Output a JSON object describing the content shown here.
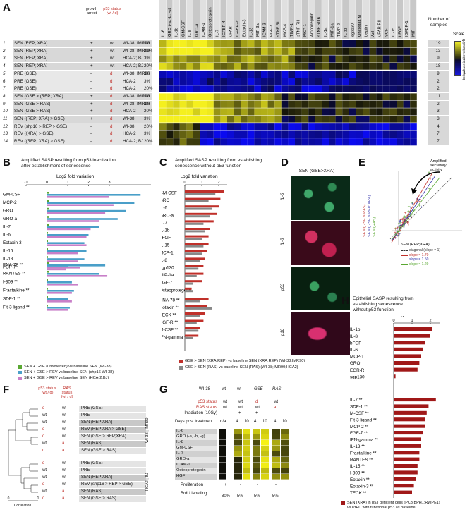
{
  "panelA": {
    "letter": "A",
    "col_headers": {
      "growth": "growth arrest",
      "p53": "p53 status",
      "p53_sub": "(wt / d)"
    },
    "rows": [
      {
        "n": "1",
        "label": "SEN  (REP; XRA)",
        "arrest": "+",
        "p53": "wt",
        "cells": "WI-38; IMR90",
        "o2": "3%",
        "count": "19"
      },
      {
        "n": "2",
        "label": "SEN  (REP; XRA)",
        "arrest": "+",
        "p53": "wt",
        "cells": "WI-38; IMR90",
        "o2": "20%",
        "count": "13"
      },
      {
        "n": "3",
        "label": "SEN  (REP; XRA)",
        "arrest": "+",
        "p53": "wt",
        "cells": "HCA-2; BJ",
        "o2": "3%",
        "count": "9"
      },
      {
        "n": "4",
        "label": "SEN  (REP; XRA)",
        "arrest": "+",
        "p53": "wt",
        "cells": "HCA-2; BJ",
        "o2": "20%",
        "count": "18"
      },
      {
        "n": "5",
        "label": "PRE  (GSE)",
        "arrest": "-",
        "p53": "d",
        "cells": "WI-38; IMR90",
        "o2": "3%",
        "count": "9"
      },
      {
        "n": "6",
        "label": "PRE  (GSE)",
        "arrest": "-",
        "p53": "d",
        "cells": "HCA-2",
        "o2": "3%",
        "count": "2"
      },
      {
        "n": "7",
        "label": "PRE  (GSE)",
        "arrest": "-",
        "p53": "d",
        "cells": "HCA-2",
        "o2": "20%",
        "count": "2"
      },
      {
        "n": "8",
        "label": "SEN  (GSE > (REP; XRA)",
        "arrest": "+",
        "p53": "d",
        "cells": "WI-38; IMR90",
        "o2": "3%",
        "count": "11"
      },
      {
        "n": "9",
        "label": "SEN  (GSE > RAS)",
        "arrest": "+",
        "p53": "d",
        "cells": "WI-38; IMR90",
        "o2": "3%",
        "count": "2"
      },
      {
        "n": "10",
        "label": "SEN  (GSE > RAS)",
        "arrest": "+",
        "p53": "d",
        "cells": "HCA-2",
        "o2": "20%",
        "count": "3"
      },
      {
        "n": "11",
        "label": "SEN  ((REP; XRA) > GSE)",
        "arrest": "+",
        "p53": "d",
        "cells": "WI-38",
        "o2": "3%",
        "count": "3"
      },
      {
        "n": "12",
        "label": "REV  (shp16 > REP > GSE)",
        "arrest": "-",
        "p53": "d",
        "cells": "WI-38",
        "o2": "20%",
        "count": "4"
      },
      {
        "n": "13",
        "label": "REV  ((XRA) > GSE)",
        "arrest": "-",
        "p53": "d",
        "cells": "HCA-2",
        "o2": "3%",
        "count": "7"
      },
      {
        "n": "14",
        "label": "REV  ((REP; XRA) > GSE)",
        "arrest": "-",
        "p53": "d",
        "cells": "HCA-2; BJ",
        "o2": "20%",
        "count": "7"
      }
    ],
    "genes": [
      "IL-6",
      "GRO (-a, -b, -g)",
      "IL-1b",
      "GM-CSF",
      "IL-8",
      "GRO-a",
      "ICAM-1",
      "Osteoprotegerin",
      "IL-7",
      "IGFBP-4",
      "uPAR",
      "IGFBP-2",
      "Eotaxin-3",
      "IL-13",
      "MIP-3a",
      "ICAM-3",
      "FGF-7",
      "sTNF RI",
      "MCP-4",
      "TIMP-1",
      "sTNF RII",
      "MCP-1",
      "Amphiregulin",
      "sTNF RII 6",
      "IL-1a",
      "MIP-1a",
      "TIMP-2",
      "IL-11",
      "sgp130",
      "Oncostat. M",
      "Leptin",
      "Axl",
      "uPAR RII",
      "SCF",
      "IL-15",
      "bFGF",
      "IGFBP-1",
      "MIF"
    ],
    "count_header": "Number of samples",
    "scale": {
      "title": "Scale",
      "top": "above baseline",
      "bottom": "below baseline",
      "max": "4",
      "min": "-1"
    }
  },
  "panelB": {
    "letter": "B",
    "title_l1": "Amplified SASP resulting from p53 inactivation",
    "title_l2a": "after",
    "title_l2b": " establishment of senescence",
    "axis_title": "Log2 fold variation",
    "ticks": [
      "-1",
      "0",
      "1",
      "2",
      "3"
    ],
    "legend": [
      {
        "label": "SEN + GSE (unreverted)  vs  baseline SEN  (WI-38)",
        "color": "#5aa832"
      },
      {
        "label": "SEN + GSE > REV  vs  baseline SEN  (shp16 WI-38)",
        "color": "#4a9fc9"
      },
      {
        "label": "SEN + GSE > REV  vs  baseline SEN  (HCA-2;BJ)",
        "color": "#c87fc8"
      }
    ]
  },
  "panelC": {
    "letter": "C",
    "title_l1": "Amplified SASP resulting from establishing",
    "title_l2": "senescence without p53 function",
    "axis_title": "Log2 fold variation",
    "ticks": [
      "0",
      "1",
      "2"
    ],
    "legend": [
      {
        "label": "GSE > SEN (XRA;REP)  vs  baseline SEN (XRA;REP) (WI-38;IMR90)",
        "color": "#c0302a"
      },
      {
        "label": "GSE > SEN (RAS)  vs  baseline SEN (RAS)  (WI-38;IMR90;HCA2)",
        "color": "#888888"
      }
    ]
  },
  "panelD": {
    "letter": "D",
    "title": "SEN (GSE>XRA)",
    "labels": [
      "IL-6",
      "IL-8",
      "p53",
      "p16"
    ]
  },
  "panelE": {
    "letter": "E",
    "arrow_label_1": "Amplified",
    "arrow_label_2": "secretory",
    "arrow_label_3": "activity",
    "y_labels": [
      "SEN (GSE > RAS)",
      "SEN (GSE > REP;XRA)",
      "SEN (RAS)"
    ],
    "x_label": "SEN (REP;XRA)",
    "legend": [
      {
        "label": "diagonal (slope = 1)",
        "color": "#333333"
      },
      {
        "label": "slope = 1.70",
        "color": "#c0302a"
      },
      {
        "label": "slope = 1.50",
        "color": "#3333aa"
      },
      {
        "label": "slope = 1.29",
        "color": "#5aa832"
      }
    ]
  },
  "panelF": {
    "letter": "F",
    "p53_header": "p53 status",
    "ras_header": "RAS status",
    "sub": "(wt / d)",
    "rows": [
      {
        "p53": "d",
        "ras": "wt",
        "label": "PRE  (GSE)"
      },
      {
        "p53": "wt",
        "ras": "wt",
        "label": "PRE"
      },
      {
        "p53": "wt",
        "ras": "wt",
        "label": "SEN  (REP;XRA)"
      },
      {
        "p53": "d",
        "ras": "wt",
        "label": "REV  (REP;XRA > GSE)"
      },
      {
        "p53": "d",
        "ras": "wt",
        "label": "SEN  (GSE > REP;XRA)"
      },
      {
        "p53": "wt",
        "ras": "a",
        "label": "SEN  (RAS)"
      },
      {
        "p53": "d",
        "ras": "a",
        "label": "SEN  (GSE > RAS)"
      },
      {
        "p53": "d",
        "ras": "wt",
        "label": "PRE  (GSE)"
      },
      {
        "p53": "wt",
        "ras": "wt",
        "label": "PRE"
      },
      {
        "p53": "wt",
        "ras": "wt",
        "label": "SEN  (REP;XRA)"
      },
      {
        "p53": "d",
        "ras": "wt",
        "label": "REV  (shp16 > REP > GSE)"
      },
      {
        "p53": "wt",
        "ras": "a",
        "label": "SEN  (RAS)"
      },
      {
        "p53": "d",
        "ras": "a",
        "label": "SEN  (GSE > RAS)"
      }
    ],
    "group1": "WI-38 ; IMR90",
    "group2": "HCA2 ; BJ",
    "axis": "Correlation",
    "ticks": [
      "0",
      "1"
    ]
  },
  "panelG": {
    "letter": "G",
    "cell": "WI-38",
    "cols": [
      "wt",
      "wt",
      "GSE",
      "RAS"
    ],
    "p53_label": "p53 status",
    "p53": [
      "wt",
      "wt",
      "d",
      "wt"
    ],
    "ras_label": "RAS status",
    "ras": [
      "wt",
      "wt",
      "wt",
      "a"
    ],
    "irr_label": "Irradiation (10Gy)",
    "irr": [
      "-",
      "+",
      "+",
      "-"
    ],
    "days_label": "Days post treatment",
    "days": [
      "n/a",
      "4",
      "10",
      "4",
      "10",
      "4",
      "10"
    ],
    "genes": [
      "IL-6",
      "GRO (-a, -b, -g)",
      "IL-8",
      "GM-CSF",
      "IL-7",
      "GRO-a",
      "ICAM-1",
      "Osteoprotegerin",
      "HGF"
    ],
    "prolif_label": "Proliferation",
    "prolif": [
      "+",
      "-",
      "-",
      "-"
    ],
    "brdu_label": "BrdU labelling",
    "brdu": [
      "80%",
      "5%",
      "5%",
      "5%"
    ]
  },
  "panelH": {
    "letter": "H",
    "title_l1": "Epithelial SASP resulting from",
    "title_l2": "establishing senescence",
    "title_l3": "without p53 function",
    "axis_title": "Log2 fold variation",
    "ticks": [
      "0",
      "1",
      "2"
    ],
    "legend_l1": "SEN (XRA) in p53 deficient cells (PC3;BPH1;RWPE1)",
    "legend_l2": "vs  PrEC with functional p53 as baseline",
    "color": "#a01818"
  },
  "chart_data": [
    {
      "type": "bar",
      "id": "panelB",
      "categories": [
        "GM-CSF",
        "MCP-2",
        "GRO",
        "GRO-a",
        "IL-7",
        "IL-6",
        "Eotaxin-3",
        "IL-15",
        "IL-13",
        "FGF-7",
        "ENA-78 **",
        "RANTES **",
        "I-309 **",
        "Fractalkine **",
        "SDF-1 **",
        "Flt-3 ligand **"
      ],
      "series": [
        {
          "name": "SEN + GSE (unreverted)  vs  baseline SEN  (WI-38)",
          "values": [
            0.1,
            0.1,
            0.1,
            0.1,
            0.1,
            0.05,
            0.05,
            0.05,
            0.05,
            0.05,
            0.1,
            0.1,
            0.05,
            0.05,
            0.05,
            0.05
          ]
        },
        {
          "name": "SEN + GSE > REV  vs  baseline SEN  (shp16 WI-38)",
          "values": [
            4.5,
            4.2,
            3.8,
            3.4,
            2.5,
            2.0,
            1.8,
            1.9,
            1.8,
            1.0,
            2.8,
            2.5,
            1.2,
            1.3,
            1.0,
            1.1
          ]
        },
        {
          "name": "SEN + GSE > REV  vs  baseline SEN  (HCA-2;BJ)",
          "values": [
            3.0,
            3.2,
            2.8,
            2.5,
            2.1,
            1.9,
            1.9,
            1.5,
            1.5,
            0.9,
            1.6,
            2.9,
            1.5,
            1.2,
            1.2,
            1.0
          ]
        }
      ],
      "xlim": [
        -1,
        5
      ]
    },
    {
      "type": "bar",
      "id": "panelC",
      "categories": [
        "GM-CSF",
        "GRO",
        "IL-6",
        "GRO-a",
        "IL-7",
        "IL-1b",
        "bFGF",
        "IL-15",
        "MCP-1",
        "IL-8",
        "sgp130",
        "MIP-1a",
        "FGF-7",
        "Osteoprotegerin",
        "ENA-78 **",
        "Eotaxin **",
        "TECK **",
        "EGF-R **",
        "M-CSF **",
        "IFN-gamma **"
      ],
      "series": [
        {
          "name": "GSE > SEN (XRA;REP)  vs  baseline SEN (XRA;REP) (WI-38;IMR90)",
          "values": [
            2.3,
            2.1,
            2.0,
            1.9,
            1.7,
            1.5,
            1.4,
            1.4,
            1.3,
            1.2,
            1.1,
            1.1,
            1.0,
            0.4,
            1.4,
            1.3,
            1.2,
            1.1,
            0.9,
            0.8
          ]
        },
        {
          "name": "GSE > SEN (RAS)  vs  baseline SEN (RAS)  (WI-38;IMR90;HCA2)",
          "values": [
            1.8,
            1.4,
            1.6,
            1.5,
            1.1,
            1.2,
            1.0,
            1.1,
            1.0,
            0.9,
            0.8,
            0.7,
            0.5,
            0.5,
            0.9,
            1.6,
            0.9,
            0.7,
            0.8,
            0.5
          ]
        }
      ],
      "xlim": [
        0,
        2.5
      ]
    },
    {
      "type": "bar",
      "id": "panelH",
      "categories": [
        "IL-1b",
        "IL-8",
        "bFGF",
        "IL-6",
        "MCP-1",
        "GRO",
        "EGR-R",
        "sgp130",
        "IL-7 **",
        "SDF-1 **",
        "M-CSF **",
        "Flt-3 ligand **",
        "MCP-2 **",
        "FGF-7 **",
        "IFN-gamma **",
        "IL-13 **",
        "Fractalkine **",
        "RANTES **",
        "IL-15 **",
        "I-309 **",
        "Eotaxin **",
        "Eotaxin-3 **",
        "TECK **"
      ],
      "series": [
        {
          "name": "SEN (XRA) in p53 deficient cells (PC3;BPH1;RWPE1)",
          "values": [
            2.1,
            2.0,
            1.7,
            1.6,
            1.5,
            1.4,
            1.3,
            0.1,
            2.3,
            1.9,
            1.8,
            1.7,
            1.7,
            1.6,
            1.5,
            1.5,
            1.4,
            1.4,
            1.3,
            1.3,
            1.2,
            1.1,
            1.0
          ]
        }
      ],
      "xlim": [
        0,
        2.5
      ]
    }
  ]
}
